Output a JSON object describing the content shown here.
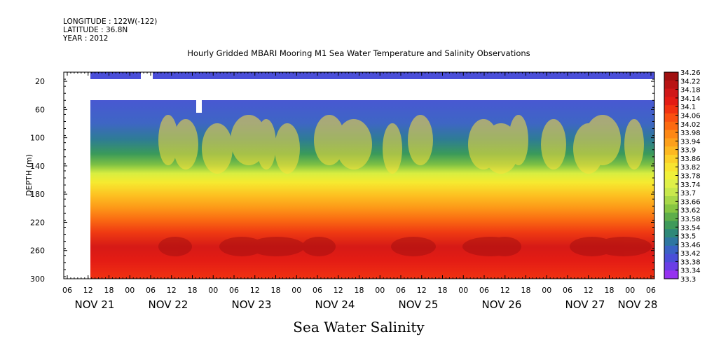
{
  "header": {
    "longitude": "LONGITUDE : 122W(-122)",
    "latitude": "LATITUDE : 36.8N",
    "year": "YEAR : 2012"
  },
  "chart_data": {
    "type": "heatmap",
    "title": "Hourly Gridded MBARI Mooring M1 Sea Water Temperature and Salinity Observations",
    "xlabel": "Sea Water Salinity",
    "ylabel": "DEPTH (m)",
    "ylim": [
      300,
      0
    ],
    "y_ticks": [
      20,
      60,
      100,
      140,
      180,
      220,
      260,
      300
    ],
    "x_range_hours_labels": "NOV 21 06 to NOV 28 06",
    "x_ticks": [
      "06",
      "12",
      "18",
      "00",
      "06",
      "12",
      "18",
      "00",
      "06",
      "12",
      "18",
      "00",
      "06",
      "12",
      "18",
      "00",
      "06",
      "12",
      "18",
      "00",
      "06",
      "12",
      "18",
      "00",
      "06",
      "12",
      "18",
      "00",
      "06"
    ],
    "date_labels": [
      "NOV 21",
      "NOV 22",
      "NOV 23",
      "NOV 24",
      "NOV 25",
      "NOV 26",
      "NOV 27",
      "NOV 28"
    ],
    "colorbar_levels": [
      33.3,
      33.34,
      33.38,
      33.42,
      33.46,
      33.5,
      33.54,
      33.58,
      33.62,
      33.66,
      33.7,
      33.74,
      33.78,
      33.82,
      33.86,
      33.9,
      33.94,
      33.98,
      34.02,
      34.06,
      34.1,
      34.14,
      34.18,
      34.22,
      34.26
    ],
    "colorbar_labels": [
      "34.26",
      "34.22",
      "34.18",
      "34.14",
      "34.1",
      "34.06",
      "34.02",
      "33.98",
      "33.94",
      "33.9",
      "33.86",
      "33.82",
      "33.78",
      "33.74",
      "33.7",
      "33.66",
      "33.62",
      "33.58",
      "33.54",
      "33.5",
      "33.46",
      "33.42",
      "33.38",
      "33.34",
      "33.3"
    ],
    "colorbar_colors": [
      "#a01010",
      "#b81414",
      "#d01818",
      "#e41c14",
      "#f23210",
      "#fa5010",
      "#fc6a10",
      "#fd8814",
      "#fda01a",
      "#fdb820",
      "#fcd028",
      "#f8e430",
      "#f0f03a",
      "#dff048",
      "#c8e84c",
      "#a8d848",
      "#86c642",
      "#5eae4a",
      "#3e9a5a",
      "#2e8878",
      "#2e76a0",
      "#3a62c4",
      "#4a4ed8",
      "#6a3ee6",
      "#9632f0"
    ],
    "depth_profile": [
      {
        "depth": 10,
        "salinity": 33.46
      },
      {
        "depth": 40,
        "salinity": 33.47
      },
      {
        "depth": 60,
        "salinity": 33.48
      },
      {
        "depth": 80,
        "salinity": 33.52
      },
      {
        "depth": 100,
        "salinity": 33.58
      },
      {
        "depth": 120,
        "salinity": 33.72
      },
      {
        "depth": 140,
        "salinity": 33.88
      },
      {
        "depth": 160,
        "salinity": 33.96
      },
      {
        "depth": 180,
        "salinity": 34.02
      },
      {
        "depth": 200,
        "salinity": 34.08
      },
      {
        "depth": 220,
        "salinity": 34.13
      },
      {
        "depth": 240,
        "salinity": 34.17
      },
      {
        "depth": 260,
        "salinity": 34.2
      },
      {
        "depth": 280,
        "salinity": 34.17
      },
      {
        "depth": 300,
        "salinity": 34.14
      }
    ]
  }
}
